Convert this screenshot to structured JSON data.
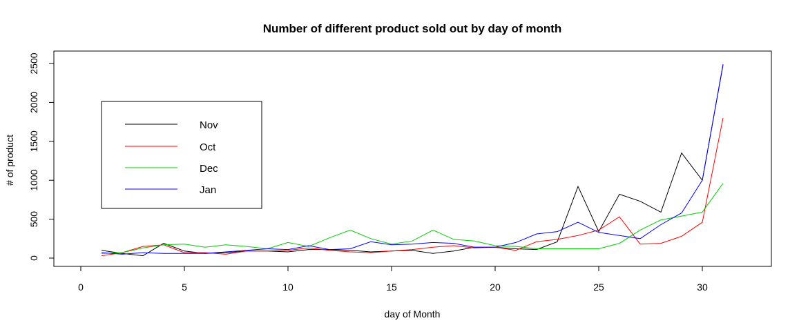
{
  "chart_data": {
    "type": "line",
    "title": "Number of different product sold out by day of month",
    "xlabel": "day of Month",
    "ylabel": "# of product",
    "xlim": [
      0,
      31
    ],
    "ylim": [
      0,
      2500
    ],
    "x_ticks": [
      0,
      5,
      10,
      15,
      20,
      25,
      30
    ],
    "y_ticks": [
      0,
      500,
      1000,
      1500,
      2000,
      2500
    ],
    "grid": false,
    "legend_position": "top-left",
    "x": [
      1,
      2,
      3,
      4,
      5,
      6,
      7,
      8,
      9,
      10,
      11,
      12,
      13,
      14,
      15,
      16,
      17,
      18,
      19,
      20,
      21,
      22,
      23,
      24,
      25,
      26,
      27,
      28,
      29,
      30,
      31
    ],
    "series": [
      {
        "name": "Nov",
        "color": "#000000",
        "values": [
          100,
          60,
          30,
          190,
          90,
          60,
          70,
          90,
          90,
          80,
          110,
          110,
          100,
          80,
          90,
          100,
          60,
          90,
          140,
          140,
          120,
          110,
          210,
          920,
          340,
          820,
          730,
          590,
          1350,
          1000,
          2480
        ]
      },
      {
        "name": "Oct",
        "color": "#ff0000",
        "values": [
          30,
          70,
          150,
          170,
          70,
          70,
          50,
          90,
          90,
          100,
          130,
          100,
          80,
          70,
          90,
          110,
          140,
          160,
          130,
          140,
          100,
          210,
          240,
          290,
          360,
          530,
          180,
          190,
          280,
          460,
          1800
        ]
      },
      {
        "name": "Dec",
        "color": "#00cd00",
        "values": [
          60,
          70,
          130,
          170,
          180,
          140,
          170,
          150,
          120,
          200,
          150,
          260,
          360,
          250,
          180,
          220,
          360,
          240,
          220,
          160,
          150,
          120,
          120,
          120,
          120,
          190,
          360,
          490,
          540,
          590,
          960
        ]
      },
      {
        "name": "Jan",
        "color": "#0000ff",
        "values": [
          70,
          50,
          70,
          60,
          60,
          60,
          80,
          100,
          120,
          110,
          160,
          110,
          120,
          210,
          170,
          180,
          200,
          190,
          140,
          140,
          200,
          310,
          340,
          460,
          330,
          290,
          250,
          430,
          580,
          1000,
          2490
        ]
      }
    ]
  }
}
